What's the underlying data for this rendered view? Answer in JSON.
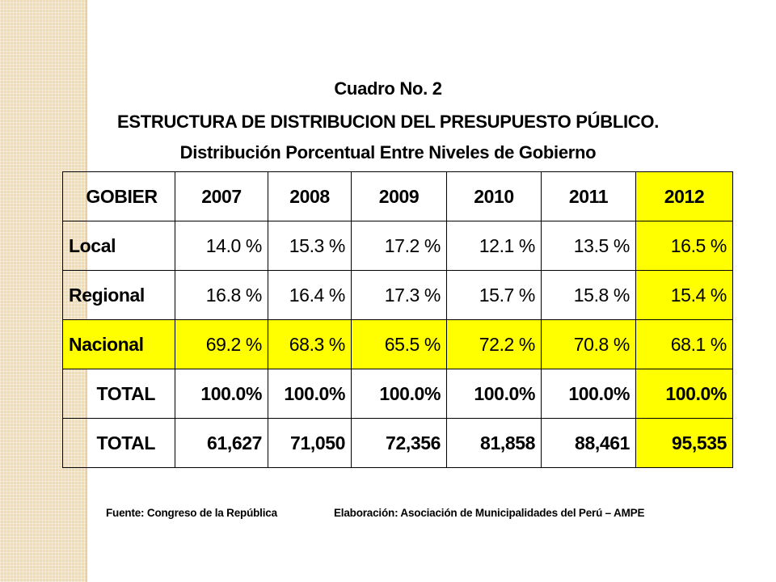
{
  "title": {
    "line1": "Cuadro No. 2",
    "line2": "ESTRUCTURA DE DISTRIBUCION DEL PRESUPUESTO PÚBLICO.",
    "line3": "Distribución Porcentual Entre Niveles de Gobierno"
  },
  "table": {
    "headers": [
      "GOBIER",
      "2007",
      "2008",
      "2009",
      "2010",
      "2011",
      "2012"
    ],
    "rows": [
      {
        "label": "Local",
        "values": [
          "14.0 %",
          "15.3 %",
          "17.2 %",
          "12.1 %",
          "13.5 %",
          "16.5 %"
        ]
      },
      {
        "label": "Regional",
        "values": [
          "16.8 %",
          "16.4 %",
          "17.3 %",
          "15.7 %",
          "15.8 %",
          "15.4 %"
        ]
      },
      {
        "label": "Nacional",
        "values": [
          "69.2 %",
          "68.3 %",
          "65.5 %",
          "72.2 %",
          "70.8 %",
          "68.1 %"
        ]
      },
      {
        "label": "TOTAL",
        "values": [
          "100.0%",
          "100.0%",
          "100.0%",
          "100.0%",
          "100.0%",
          "100.0%"
        ]
      },
      {
        "label": "TOTAL",
        "values": [
          "61,627",
          "71,050",
          "72,356",
          "81,858",
          "88,461",
          "95,535"
        ]
      }
    ]
  },
  "footer": {
    "source": "Fuente: Congreso de la República",
    "elaboration": "Elaboración: Asociación de Municipalidades del Perú – AMPE"
  },
  "colors": {
    "highlight": "#ffff00",
    "side_strip": "#efdcb6"
  }
}
